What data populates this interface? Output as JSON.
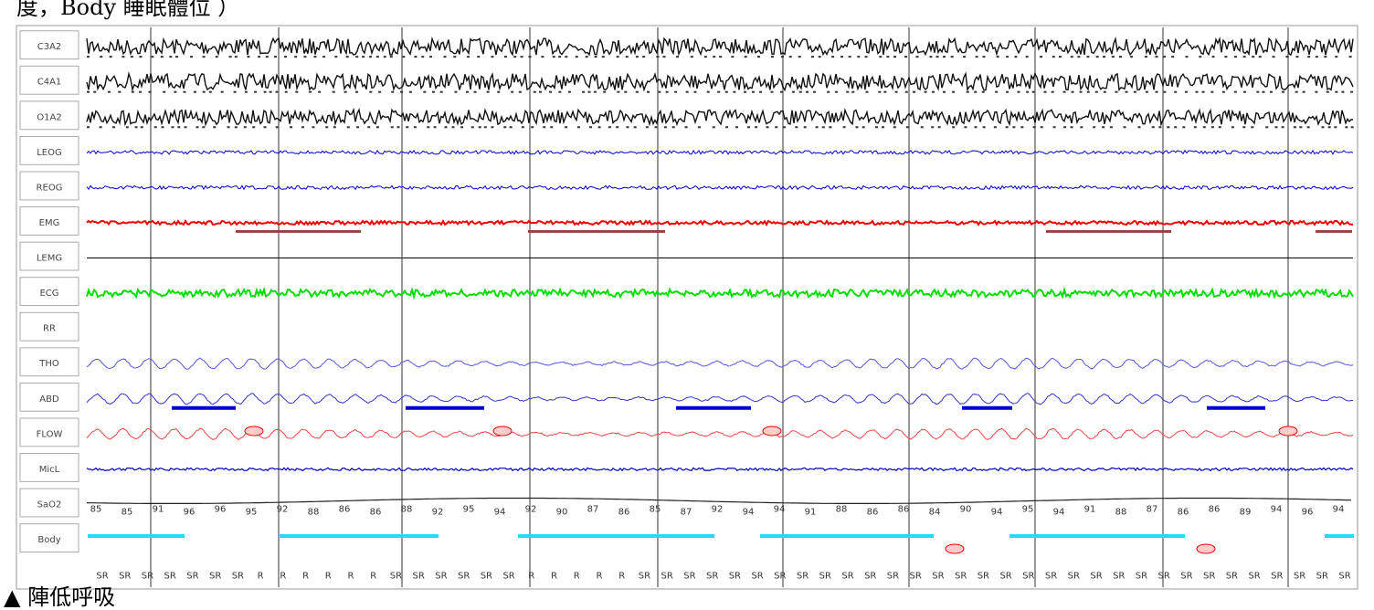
{
  "header": {
    "text": "度，Body 睡眠體位 ）"
  },
  "channels": [
    "C3A2",
    "C4A1",
    "O1A2",
    "LEOG",
    "REOG",
    "EMG",
    "LEMG",
    "ECG",
    "RR",
    "THO",
    "ABD",
    "FLOW",
    "MicL",
    "SaO2",
    "Body"
  ],
  "sao2": [
    85,
    85,
    91,
    96,
    96,
    95,
    92,
    88,
    86,
    86,
    88,
    92,
    95,
    94,
    92,
    90,
    87,
    86,
    85,
    87,
    92,
    94,
    94,
    91,
    88,
    86,
    86,
    84,
    90,
    94,
    95,
    94,
    91,
    88,
    87,
    86,
    86,
    89,
    94,
    96,
    94
  ],
  "body": [
    "SR",
    "SR",
    "SR",
    "SR",
    "SR",
    "SR",
    "SR",
    "R",
    "R",
    "R",
    "R",
    "R",
    "R",
    "SR",
    "SR",
    "SR",
    "SR",
    "SR",
    "SR",
    "R",
    "R",
    "R",
    "R",
    "R",
    "SR",
    "SR",
    "SR",
    "SR",
    "SR",
    "SR",
    "SR",
    "SR",
    "SR",
    "SR",
    "SR",
    "SR",
    "SR",
    "SR",
    "SR",
    "SR",
    "SR",
    "SR",
    "SR",
    "SR",
    "SR",
    "SR",
    "SR",
    "SR",
    "SR",
    "SR",
    "SR",
    "SR",
    "SR",
    "SR",
    "SR",
    "SR"
  ],
  "footer": {
    "text": "▲ 陣低呼吸"
  }
}
